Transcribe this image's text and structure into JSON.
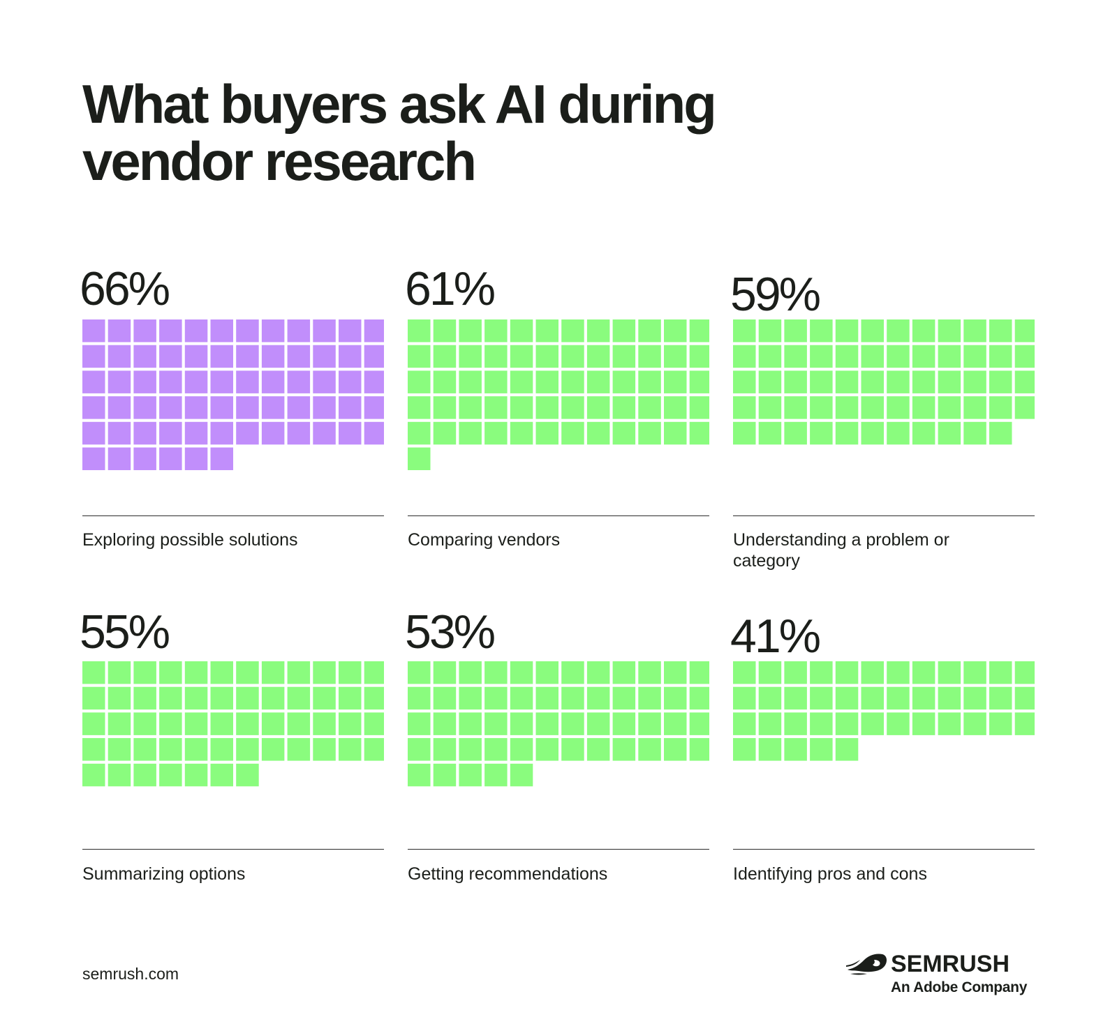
{
  "title": "What buyers ask AI during vendor research",
  "colors": {
    "highlight": "#C18EFB",
    "default": "#8AFC7E",
    "text": "#1B1E1A"
  },
  "chart_data": [
    {
      "type": "waffle",
      "value": 66,
      "label": "66%",
      "caption": "Exploring possible solutions",
      "color": "#C18EFB"
    },
    {
      "type": "waffle",
      "value": 61,
      "label": "61%",
      "caption": "Comparing vendors",
      "color": "#8AFC7E"
    },
    {
      "type": "waffle",
      "value": 59,
      "label": "59%",
      "caption": "Understanding a problem or category",
      "color": "#8AFC7E"
    },
    {
      "type": "waffle",
      "value": 55,
      "label": "55%",
      "caption": "Summarizing options",
      "color": "#8AFC7E"
    },
    {
      "type": "waffle",
      "value": 53,
      "label": "53%",
      "caption": "Getting recommendations",
      "color": "#8AFC7E"
    },
    {
      "type": "waffle",
      "value": 41,
      "label": "41%",
      "caption": "Identifying pros and cons",
      "color": "#8AFC7E"
    }
  ],
  "footer": {
    "url": "semrush.com",
    "brand_name": "SEMRUSH",
    "brand_sub": "An Adobe Company",
    "brand_icon": "semrush-fireball-icon"
  }
}
